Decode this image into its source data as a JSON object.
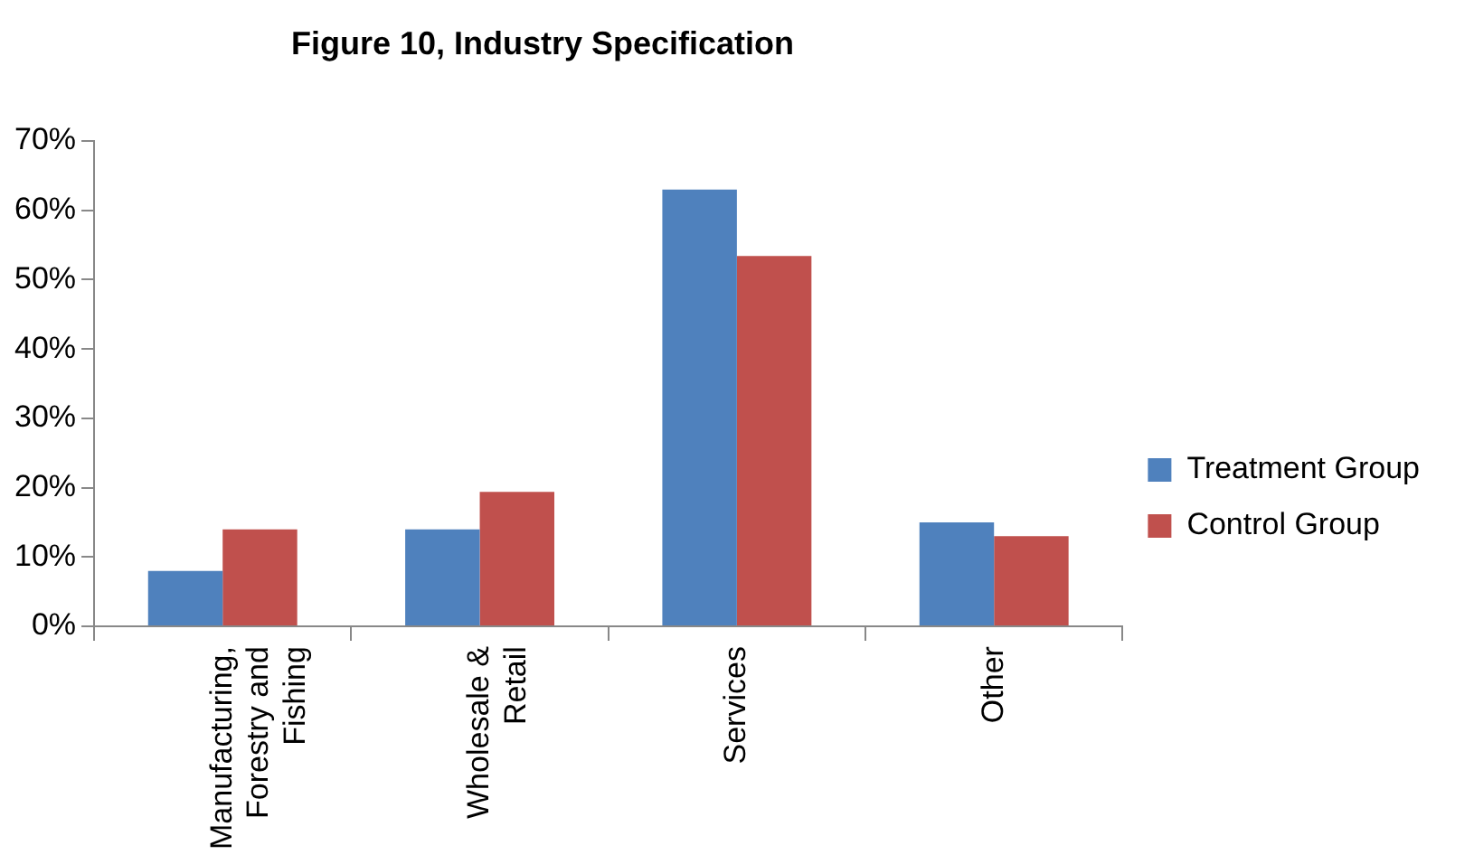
{
  "chart_data": {
    "type": "bar",
    "title": "Figure 10, Industry Specification",
    "categories": [
      "Manufacturing, Forestry and Fishing",
      "Wholesale & Retail",
      "Services",
      "Other"
    ],
    "series": [
      {
        "name": "Treatment Group",
        "color": "#4f81bd",
        "values": [
          8,
          14,
          63,
          15
        ]
      },
      {
        "name": "Control Group",
        "color": "#c0504d",
        "values": [
          14,
          19.4,
          53.4,
          13
        ]
      }
    ],
    "ylim": [
      0,
      70
    ],
    "yticks": [
      {
        "value": 0,
        "label": "0%"
      },
      {
        "value": 10,
        "label": "10%"
      },
      {
        "value": 20,
        "label": "20%"
      },
      {
        "value": 30,
        "label": "30%"
      },
      {
        "value": 40,
        "label": "40%"
      },
      {
        "value": 50,
        "label": "50%"
      },
      {
        "value": 60,
        "label": "60%"
      },
      {
        "value": 70,
        "label": "70%"
      }
    ],
    "grid": false,
    "legend": "right"
  }
}
